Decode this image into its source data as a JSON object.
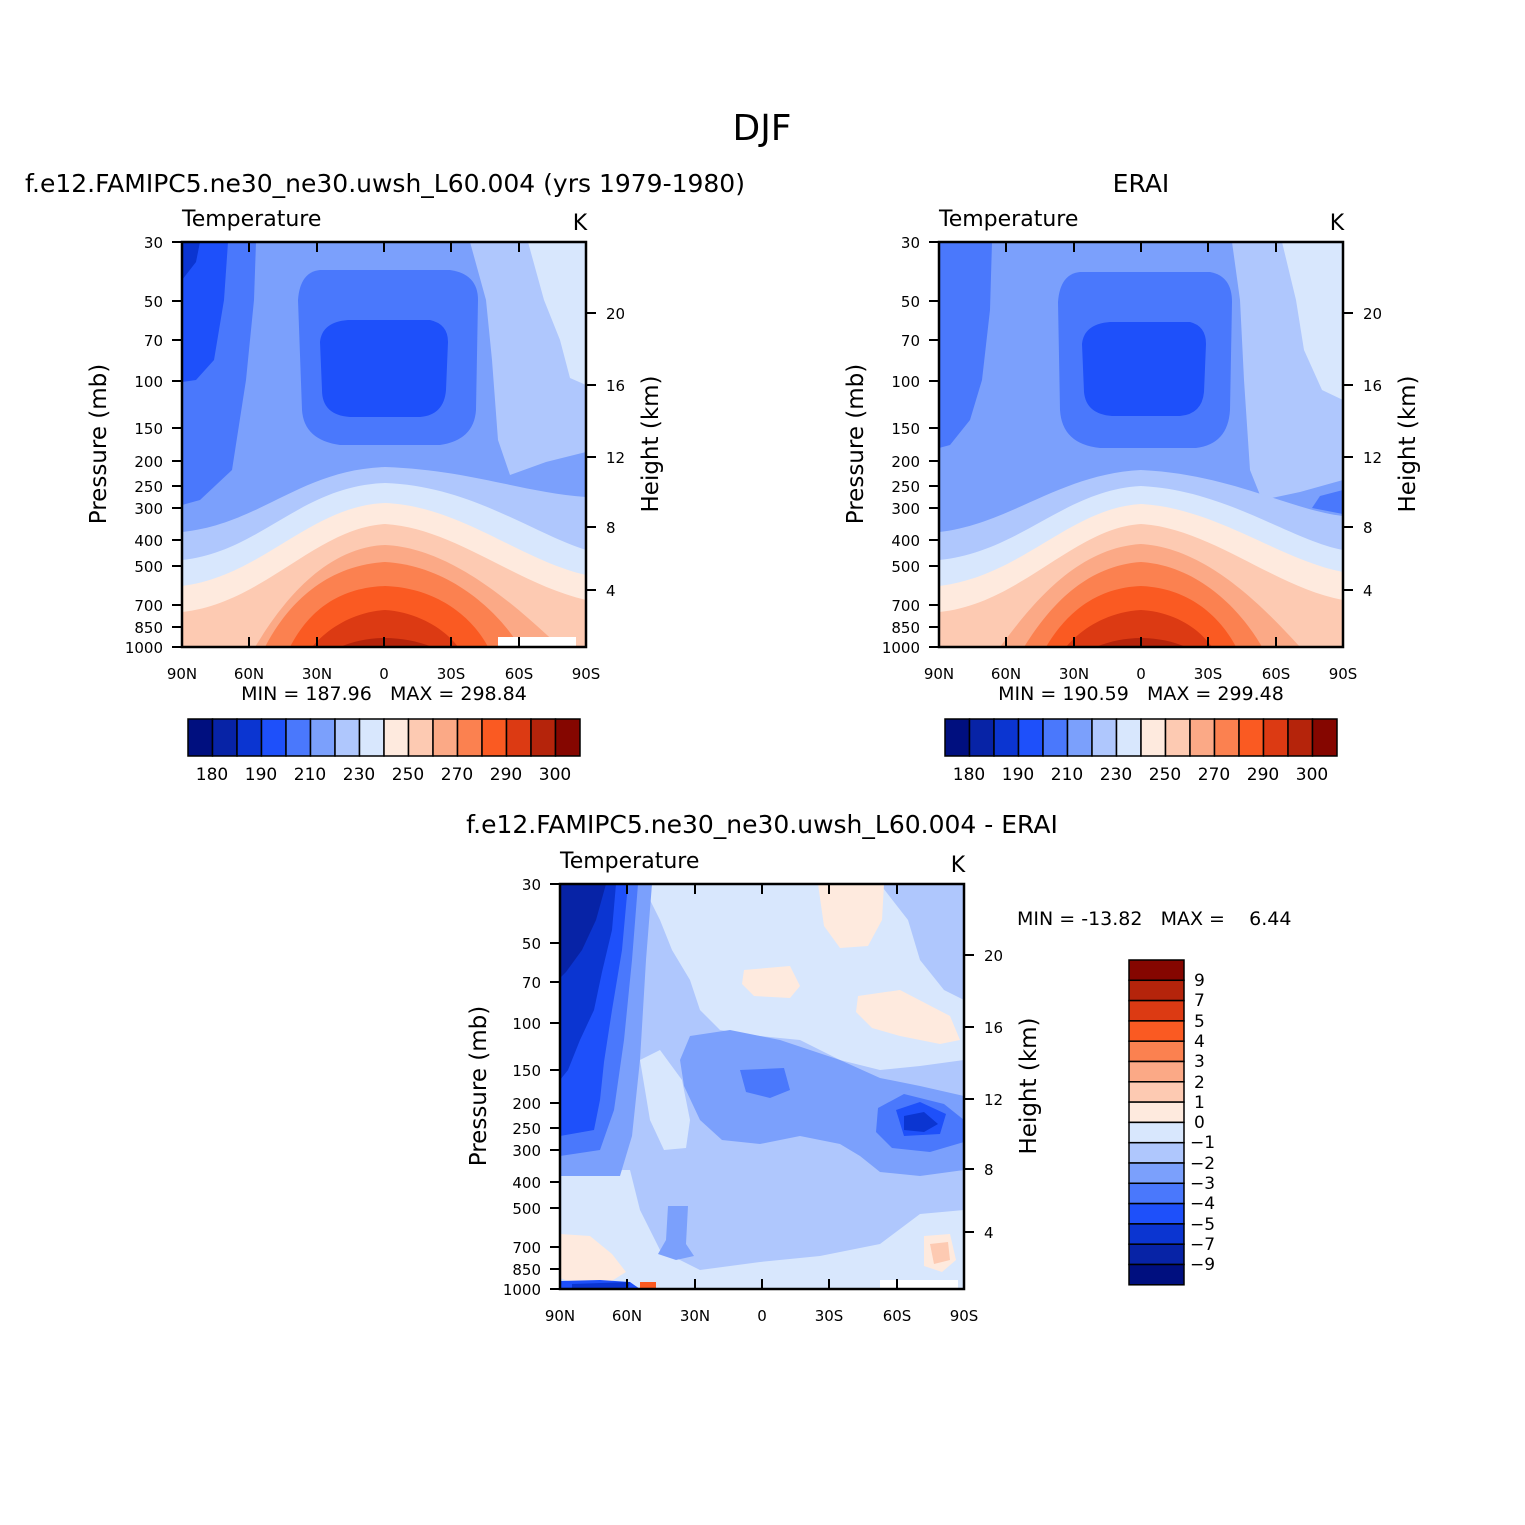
{
  "figure": {
    "title": "DJF"
  },
  "colors": {
    "temperature": [
      "#000f7f",
      "#0723a6",
      "#0b35d1",
      "#1e50fa",
      "#4a78fc",
      "#7ba0fc",
      "#afc7fd",
      "#d8e7fd",
      "#feeade",
      "#fdcab2",
      "#fba986",
      "#fb8150",
      "#fa5a22",
      "#dc3a13",
      "#b5240b",
      "#850600"
    ],
    "difference": [
      "#000f7f",
      "#0723a6",
      "#0b35d1",
      "#1e50fa",
      "#4a78fc",
      "#7ba0fc",
      "#afc7fd",
      "#d8e7fd",
      "#feeade",
      "#fdcab2",
      "#fba986",
      "#fb8150",
      "#fa5a22",
      "#dc3a13",
      "#b5240b",
      "#850600"
    ]
  },
  "chart_data": [
    {
      "type": "contour",
      "panel": "model",
      "title": "f.e12.FAMIPC5.ne30_ne30.uwsh_L60.004 (yrs 1979-1980)",
      "variable": "Temperature",
      "units": "K",
      "ylabel": "Pressure (mb)",
      "y2label": "Height (km)",
      "xticks": [
        "90N",
        "60N",
        "30N",
        "0",
        "30S",
        "60S",
        "90S"
      ],
      "yticks": [
        30,
        50,
        70,
        100,
        150,
        200,
        250,
        300,
        400,
        500,
        700,
        850,
        1000
      ],
      "y2ticks": [
        20,
        16,
        12,
        8,
        4
      ],
      "stats": "MIN = 187.96   MAX = 298.84",
      "min": 187.96,
      "max": 298.84,
      "colorbar_labels": [
        "180",
        "190",
        "210",
        "230",
        "250",
        "270",
        "290",
        "300"
      ]
    },
    {
      "type": "contour",
      "panel": "obs",
      "title": "ERAI",
      "variable": "Temperature",
      "units": "K",
      "ylabel": "Pressure (mb)",
      "y2label": "Height (km)",
      "xticks": [
        "90N",
        "60N",
        "30N",
        "0",
        "30S",
        "60S",
        "90S"
      ],
      "yticks": [
        30,
        50,
        70,
        100,
        150,
        200,
        250,
        300,
        400,
        500,
        700,
        850,
        1000
      ],
      "y2ticks": [
        20,
        16,
        12,
        8,
        4
      ],
      "stats": "MIN = 190.59   MAX = 299.48",
      "min": 190.59,
      "max": 299.48,
      "colorbar_labels": [
        "180",
        "190",
        "210",
        "230",
        "250",
        "270",
        "290",
        "300"
      ]
    },
    {
      "type": "contour",
      "panel": "diff",
      "title": "f.e12.FAMIPC5.ne30_ne30.uwsh_L60.004 - ERAI",
      "variable": "Temperature",
      "units": "K",
      "ylabel": "Pressure (mb)",
      "y2label": "Height (km)",
      "xticks": [
        "90N",
        "60N",
        "30N",
        "0",
        "30S",
        "60S",
        "90S"
      ],
      "yticks": [
        30,
        50,
        70,
        100,
        150,
        200,
        250,
        300,
        400,
        500,
        700,
        850,
        1000
      ],
      "y2ticks": [
        20,
        16,
        12,
        8,
        4
      ],
      "stats": "MIN = -13.82   MAX =    6.44",
      "min": -13.82,
      "max": 6.44,
      "colorbar_labels": [
        "9",
        "7",
        "5",
        "4",
        "3",
        "2",
        "1",
        "0",
        "−1",
        "−2",
        "−3",
        "−4",
        "−5",
        "−7",
        "−9"
      ]
    }
  ]
}
